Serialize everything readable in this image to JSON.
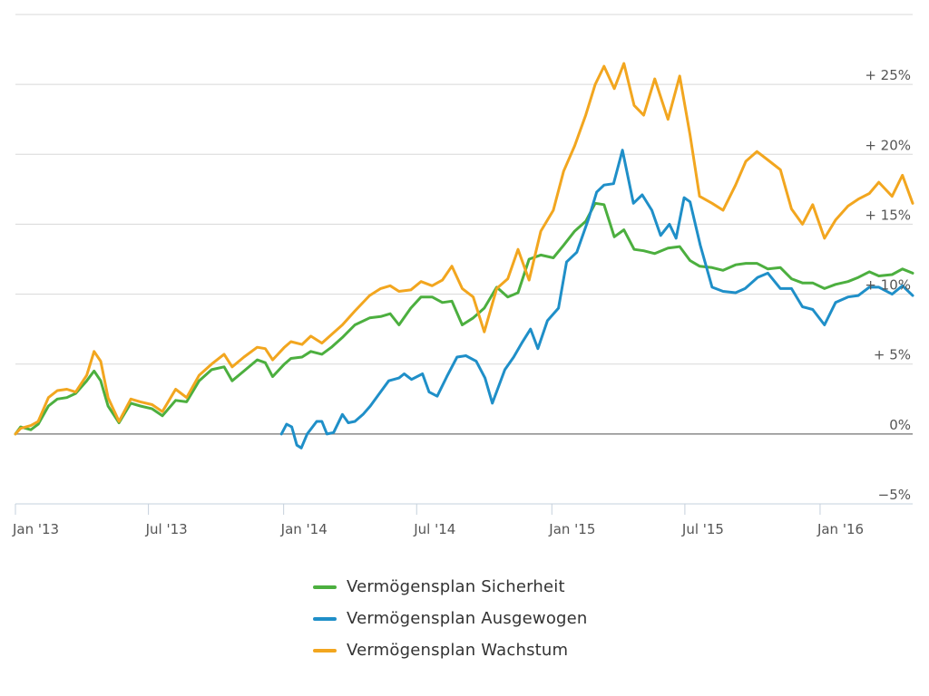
{
  "chart_data": {
    "type": "line",
    "title": "",
    "xlabel": "",
    "ylabel": "",
    "grid": true,
    "legend_position": "bottom-center",
    "x_range": [
      "2013-01-01",
      "2016-05-06"
    ],
    "ylim": [
      -5,
      30
    ],
    "y_ticks": [
      {
        "value": -5,
        "label": "−5%"
      },
      {
        "value": 0,
        "label": "0%"
      },
      {
        "value": 5,
        "label": "+ 5%"
      },
      {
        "value": 10,
        "label": "+ 10%"
      },
      {
        "value": 15,
        "label": "+ 15%"
      },
      {
        "value": 20,
        "label": "+ 20%"
      },
      {
        "value": 25,
        "label": "+ 25%"
      }
    ],
    "x_ticks": [
      {
        "date": "2013-01-01",
        "label": "Jan '13"
      },
      {
        "date": "2013-07-01",
        "label": "Jul '13"
      },
      {
        "date": "2014-01-01",
        "label": "Jan '14"
      },
      {
        "date": "2014-07-01",
        "label": "Jul '14"
      },
      {
        "date": "2015-01-01",
        "label": "Jan '15"
      },
      {
        "date": "2015-07-01",
        "label": "Jul '15"
      },
      {
        "date": "2016-01-01",
        "label": "Jan '16"
      }
    ],
    "series": [
      {
        "name": "Vermögensplan Sicherheit",
        "color": "#4caf3f",
        "points": [
          [
            "2013-01-01",
            0.0
          ],
          [
            "2013-01-08",
            0.5
          ],
          [
            "2013-01-22",
            0.3
          ],
          [
            "2013-02-01",
            0.7
          ],
          [
            "2013-02-15",
            2.0
          ],
          [
            "2013-02-27",
            2.5
          ],
          [
            "2013-03-12",
            2.6
          ],
          [
            "2013-03-24",
            2.9
          ],
          [
            "2013-04-08",
            3.8
          ],
          [
            "2013-04-18",
            4.5
          ],
          [
            "2013-04-27",
            3.8
          ],
          [
            "2013-05-07",
            2.0
          ],
          [
            "2013-05-22",
            0.8
          ],
          [
            "2013-06-07",
            2.2
          ],
          [
            "2013-06-20",
            2.0
          ],
          [
            "2013-07-06",
            1.8
          ],
          [
            "2013-07-20",
            1.3
          ],
          [
            "2013-08-07",
            2.4
          ],
          [
            "2013-08-22",
            2.3
          ],
          [
            "2013-09-08",
            3.8
          ],
          [
            "2013-09-25",
            4.6
          ],
          [
            "2013-10-12",
            4.8
          ],
          [
            "2013-10-23",
            3.8
          ],
          [
            "2013-11-08",
            4.5
          ],
          [
            "2013-11-26",
            5.3
          ],
          [
            "2013-12-07",
            5.1
          ],
          [
            "2013-12-17",
            4.1
          ],
          [
            "2014-01-02",
            5.0
          ],
          [
            "2014-01-11",
            5.4
          ],
          [
            "2014-01-26",
            5.5
          ],
          [
            "2014-02-07",
            5.9
          ],
          [
            "2014-02-22",
            5.7
          ],
          [
            "2014-03-07",
            6.2
          ],
          [
            "2014-03-22",
            6.9
          ],
          [
            "2014-04-08",
            7.8
          ],
          [
            "2014-04-28",
            8.3
          ],
          [
            "2014-05-13",
            8.4
          ],
          [
            "2014-05-26",
            8.6
          ],
          [
            "2014-06-07",
            7.8
          ],
          [
            "2014-06-23",
            9.0
          ],
          [
            "2014-07-07",
            9.8
          ],
          [
            "2014-07-22",
            9.8
          ],
          [
            "2014-08-05",
            9.4
          ],
          [
            "2014-08-18",
            9.5
          ],
          [
            "2014-09-01",
            7.8
          ],
          [
            "2014-09-16",
            8.3
          ],
          [
            "2014-10-01",
            9.0
          ],
          [
            "2014-10-18",
            10.5
          ],
          [
            "2014-11-02",
            9.8
          ],
          [
            "2014-11-16",
            10.1
          ],
          [
            "2014-12-01",
            12.5
          ],
          [
            "2014-12-17",
            12.8
          ],
          [
            "2015-01-03",
            12.6
          ],
          [
            "2015-01-17",
            13.5
          ],
          [
            "2015-02-01",
            14.5
          ],
          [
            "2015-02-16",
            15.2
          ],
          [
            "2015-03-01",
            16.5
          ],
          [
            "2015-03-13",
            16.4
          ],
          [
            "2015-03-27",
            14.1
          ],
          [
            "2015-04-09",
            14.6
          ],
          [
            "2015-04-23",
            13.2
          ],
          [
            "2015-05-06",
            13.1
          ],
          [
            "2015-05-21",
            12.9
          ],
          [
            "2015-06-08",
            13.3
          ],
          [
            "2015-06-24",
            13.4
          ],
          [
            "2015-07-08",
            12.4
          ],
          [
            "2015-07-21",
            12.0
          ],
          [
            "2015-08-07",
            11.9
          ],
          [
            "2015-08-22",
            11.7
          ],
          [
            "2015-09-08",
            12.1
          ],
          [
            "2015-09-22",
            12.2
          ],
          [
            "2015-10-07",
            12.2
          ],
          [
            "2015-10-22",
            11.8
          ],
          [
            "2015-11-08",
            11.9
          ],
          [
            "2015-11-23",
            11.1
          ],
          [
            "2015-12-08",
            10.8
          ],
          [
            "2015-12-22",
            10.8
          ],
          [
            "2016-01-07",
            10.4
          ],
          [
            "2016-01-22",
            10.7
          ],
          [
            "2016-02-08",
            10.9
          ],
          [
            "2016-02-22",
            11.2
          ],
          [
            "2016-03-08",
            11.6
          ],
          [
            "2016-03-21",
            11.3
          ],
          [
            "2016-04-08",
            11.4
          ],
          [
            "2016-04-22",
            11.8
          ],
          [
            "2016-05-06",
            11.5
          ]
        ]
      },
      {
        "name": "Vermögensplan Ausgewogen",
        "color": "#1f8fc8",
        "points": [
          [
            "2013-12-29",
            0.0
          ],
          [
            "2014-01-05",
            0.7
          ],
          [
            "2014-01-12",
            0.5
          ],
          [
            "2014-01-19",
            -0.8
          ],
          [
            "2014-01-25",
            -1.0
          ],
          [
            "2014-02-02",
            0.0
          ],
          [
            "2014-02-15",
            0.9
          ],
          [
            "2014-02-22",
            0.9
          ],
          [
            "2014-03-01",
            0.0
          ],
          [
            "2014-03-10",
            0.1
          ],
          [
            "2014-03-22",
            1.4
          ],
          [
            "2014-03-30",
            0.8
          ],
          [
            "2014-04-08",
            0.9
          ],
          [
            "2014-04-19",
            1.4
          ],
          [
            "2014-04-29",
            2.0
          ],
          [
            "2014-05-10",
            2.8
          ],
          [
            "2014-05-24",
            3.8
          ],
          [
            "2014-06-07",
            4.0
          ],
          [
            "2014-06-14",
            4.3
          ],
          [
            "2014-06-24",
            3.9
          ],
          [
            "2014-07-09",
            4.3
          ],
          [
            "2014-07-18",
            3.0
          ],
          [
            "2014-07-29",
            2.7
          ],
          [
            "2014-08-11",
            4.1
          ],
          [
            "2014-08-25",
            5.5
          ],
          [
            "2014-09-06",
            5.6
          ],
          [
            "2014-09-20",
            5.2
          ],
          [
            "2014-10-02",
            4.0
          ],
          [
            "2014-10-12",
            2.2
          ],
          [
            "2014-10-29",
            4.6
          ],
          [
            "2014-11-10",
            5.5
          ],
          [
            "2014-11-21",
            6.5
          ],
          [
            "2014-12-03",
            7.5
          ],
          [
            "2014-12-13",
            6.1
          ],
          [
            "2014-12-26",
            8.1
          ],
          [
            "2015-01-10",
            9.0
          ],
          [
            "2015-01-21",
            12.3
          ],
          [
            "2015-02-04",
            13.0
          ],
          [
            "2015-02-20",
            15.4
          ],
          [
            "2015-03-03",
            17.3
          ],
          [
            "2015-03-13",
            17.8
          ],
          [
            "2015-03-26",
            17.9
          ],
          [
            "2015-04-07",
            20.3
          ],
          [
            "2015-04-22",
            16.5
          ],
          [
            "2015-05-04",
            17.1
          ],
          [
            "2015-05-17",
            16.0
          ],
          [
            "2015-05-29",
            14.2
          ],
          [
            "2015-06-10",
            15.0
          ],
          [
            "2015-06-19",
            14.0
          ],
          [
            "2015-06-30",
            16.9
          ],
          [
            "2015-07-08",
            16.6
          ],
          [
            "2015-07-22",
            13.5
          ],
          [
            "2015-08-07",
            10.5
          ],
          [
            "2015-08-22",
            10.2
          ],
          [
            "2015-09-08",
            10.1
          ],
          [
            "2015-09-21",
            10.4
          ],
          [
            "2015-10-08",
            11.2
          ],
          [
            "2015-10-22",
            11.5
          ],
          [
            "2015-11-08",
            10.4
          ],
          [
            "2015-11-23",
            10.4
          ],
          [
            "2015-12-08",
            9.1
          ],
          [
            "2015-12-22",
            8.9
          ],
          [
            "2016-01-07",
            7.8
          ],
          [
            "2016-01-22",
            9.4
          ],
          [
            "2016-02-08",
            9.8
          ],
          [
            "2016-02-22",
            9.9
          ],
          [
            "2016-03-08",
            10.5
          ],
          [
            "2016-03-21",
            10.5
          ],
          [
            "2016-04-08",
            10.0
          ],
          [
            "2016-04-22",
            10.6
          ],
          [
            "2016-05-06",
            9.9
          ]
        ]
      },
      {
        "name": "Vermögensplan Wachstum",
        "color": "#f2a61f",
        "points": [
          [
            "2013-01-01",
            0.0
          ],
          [
            "2013-01-08",
            0.4
          ],
          [
            "2013-01-22",
            0.6
          ],
          [
            "2013-02-01",
            0.9
          ],
          [
            "2013-02-15",
            2.6
          ],
          [
            "2013-02-27",
            3.1
          ],
          [
            "2013-03-12",
            3.2
          ],
          [
            "2013-03-24",
            3.0
          ],
          [
            "2013-04-08",
            4.2
          ],
          [
            "2013-04-18",
            5.9
          ],
          [
            "2013-04-27",
            5.2
          ],
          [
            "2013-05-07",
            2.6
          ],
          [
            "2013-05-22",
            0.9
          ],
          [
            "2013-06-07",
            2.5
          ],
          [
            "2013-06-20",
            2.3
          ],
          [
            "2013-07-06",
            2.1
          ],
          [
            "2013-07-20",
            1.6
          ],
          [
            "2013-08-07",
            3.2
          ],
          [
            "2013-08-22",
            2.6
          ],
          [
            "2013-09-08",
            4.2
          ],
          [
            "2013-09-25",
            5.0
          ],
          [
            "2013-10-12",
            5.7
          ],
          [
            "2013-10-23",
            4.8
          ],
          [
            "2013-11-08",
            5.5
          ],
          [
            "2013-11-26",
            6.2
          ],
          [
            "2013-12-07",
            6.1
          ],
          [
            "2013-12-17",
            5.3
          ],
          [
            "2014-01-02",
            6.2
          ],
          [
            "2014-01-11",
            6.6
          ],
          [
            "2014-01-26",
            6.4
          ],
          [
            "2014-02-07",
            7.0
          ],
          [
            "2014-02-22",
            6.5
          ],
          [
            "2014-03-07",
            7.1
          ],
          [
            "2014-03-22",
            7.8
          ],
          [
            "2014-04-08",
            8.8
          ],
          [
            "2014-04-28",
            9.9
          ],
          [
            "2014-05-13",
            10.4
          ],
          [
            "2014-05-26",
            10.6
          ],
          [
            "2014-06-07",
            10.2
          ],
          [
            "2014-06-23",
            10.3
          ],
          [
            "2014-07-07",
            10.9
          ],
          [
            "2014-07-22",
            10.6
          ],
          [
            "2014-08-05",
            11.0
          ],
          [
            "2014-08-18",
            12.0
          ],
          [
            "2014-09-01",
            10.4
          ],
          [
            "2014-09-16",
            9.8
          ],
          [
            "2014-10-01",
            7.3
          ],
          [
            "2014-10-18",
            10.4
          ],
          [
            "2014-11-02",
            11.1
          ],
          [
            "2014-11-16",
            13.2
          ],
          [
            "2014-12-01",
            11.0
          ],
          [
            "2014-12-17",
            14.5
          ],
          [
            "2015-01-03",
            16.0
          ],
          [
            "2015-01-17",
            18.8
          ],
          [
            "2015-02-01",
            20.6
          ],
          [
            "2015-02-16",
            22.8
          ],
          [
            "2015-03-01",
            25.0
          ],
          [
            "2015-03-13",
            26.3
          ],
          [
            "2015-03-27",
            24.7
          ],
          [
            "2015-04-09",
            26.5
          ],
          [
            "2015-04-23",
            23.5
          ],
          [
            "2015-05-06",
            22.8
          ],
          [
            "2015-05-21",
            25.4
          ],
          [
            "2015-06-08",
            22.5
          ],
          [
            "2015-06-24",
            25.6
          ],
          [
            "2015-07-08",
            21.4
          ],
          [
            "2015-07-21",
            17.0
          ],
          [
            "2015-08-07",
            16.5
          ],
          [
            "2015-08-22",
            16.0
          ],
          [
            "2015-09-08",
            17.8
          ],
          [
            "2015-09-22",
            19.5
          ],
          [
            "2015-10-07",
            20.2
          ],
          [
            "2015-10-22",
            19.6
          ],
          [
            "2015-11-08",
            18.9
          ],
          [
            "2015-11-23",
            16.1
          ],
          [
            "2015-12-08",
            15.0
          ],
          [
            "2015-12-22",
            16.4
          ],
          [
            "2016-01-07",
            14.0
          ],
          [
            "2016-01-22",
            15.3
          ],
          [
            "2016-02-08",
            16.3
          ],
          [
            "2016-02-22",
            16.8
          ],
          [
            "2016-03-08",
            17.2
          ],
          [
            "2016-03-21",
            18.0
          ],
          [
            "2016-04-08",
            17.0
          ],
          [
            "2016-04-22",
            18.5
          ],
          [
            "2016-05-06",
            16.5
          ]
        ]
      }
    ]
  }
}
